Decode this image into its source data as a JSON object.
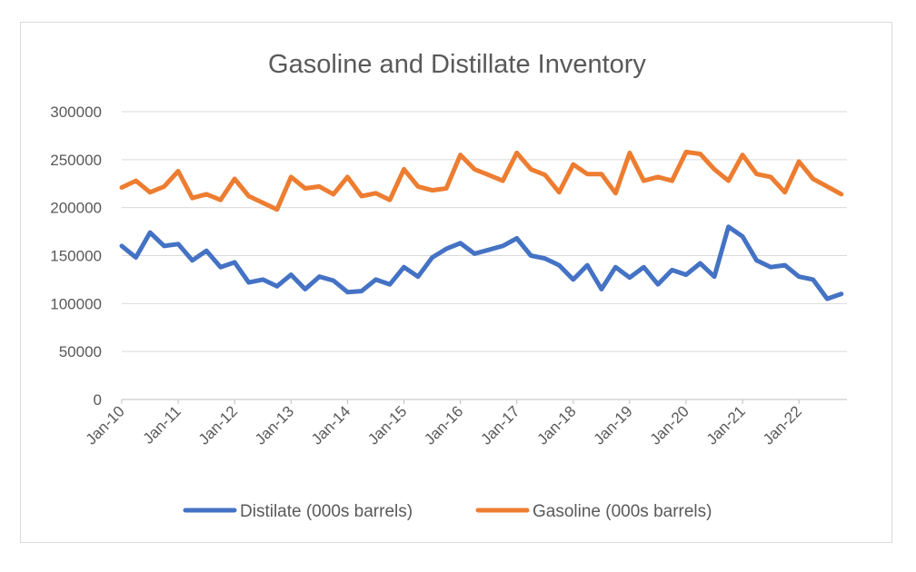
{
  "chart_data": {
    "type": "line",
    "title": "Gasoline and Distillate Inventory",
    "xlabel": "",
    "ylabel": "",
    "ylim": [
      0,
      300000
    ],
    "yticks": [
      "0",
      "50000",
      "100000",
      "150000",
      "200000",
      "250000",
      "300000"
    ],
    "xticks": [
      "Jan-10",
      "Jan-11",
      "Jan-12",
      "Jan-13",
      "Jan-14",
      "Jan-15",
      "Jan-16",
      "Jan-17",
      "Jan-18",
      "Jan-19",
      "Jan-20",
      "Jan-21",
      "Jan-22"
    ],
    "grid": true,
    "legend_position": "bottom",
    "x": [
      2010.0,
      2010.25,
      2010.5,
      2010.75,
      2011.0,
      2011.25,
      2011.5,
      2011.75,
      2012.0,
      2012.25,
      2012.5,
      2012.75,
      2013.0,
      2013.25,
      2013.5,
      2013.75,
      2014.0,
      2014.25,
      2014.5,
      2014.75,
      2015.0,
      2015.25,
      2015.5,
      2015.75,
      2016.0,
      2016.25,
      2016.5,
      2016.75,
      2017.0,
      2017.25,
      2017.5,
      2017.75,
      2018.0,
      2018.25,
      2018.5,
      2018.75,
      2019.0,
      2019.25,
      2019.5,
      2019.75,
      2020.0,
      2020.25,
      2020.5,
      2020.75,
      2021.0,
      2021.25,
      2021.5,
      2021.75,
      2022.0,
      2022.25,
      2022.5,
      2022.75
    ],
    "series": [
      {
        "name": "Distilate (000s barrels)",
        "color": "#4472C4",
        "values": [
          160000,
          148000,
          174000,
          160000,
          162000,
          145000,
          155000,
          138000,
          143000,
          122000,
          125000,
          118000,
          130000,
          115000,
          128000,
          124000,
          112000,
          113000,
          125000,
          120000,
          138000,
          128000,
          148000,
          157000,
          163000,
          152000,
          156000,
          160000,
          168000,
          150000,
          147000,
          140000,
          125000,
          140000,
          115000,
          138000,
          127000,
          138000,
          120000,
          135000,
          130000,
          142000,
          128000,
          180000,
          170000,
          145000,
          138000,
          140000,
          128000,
          125000,
          105000,
          110000
        ]
      },
      {
        "name": "Gasoline (000s barrels)",
        "color": "#ED7D31",
        "values": [
          221000,
          228000,
          216000,
          222000,
          238000,
          210000,
          214000,
          208000,
          230000,
          212000,
          205000,
          198000,
          232000,
          220000,
          222000,
          214000,
          232000,
          212000,
          215000,
          208000,
          240000,
          222000,
          218000,
          220000,
          255000,
          240000,
          234000,
          228000,
          257000,
          240000,
          234000,
          216000,
          245000,
          235000,
          235000,
          215000,
          257000,
          228000,
          232000,
          228000,
          258000,
          256000,
          240000,
          228000,
          255000,
          235000,
          232000,
          216000,
          248000,
          230000,
          222000,
          214000
        ]
      }
    ]
  }
}
